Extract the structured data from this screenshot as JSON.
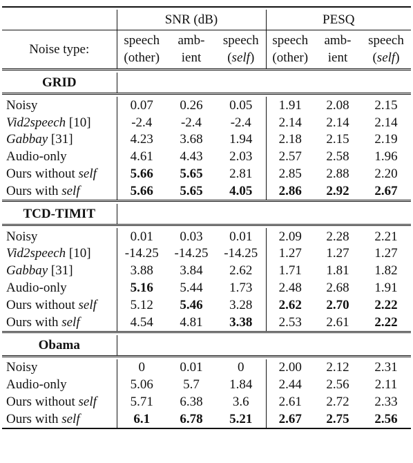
{
  "header": {
    "snr_label": "SNR (dB)",
    "pesq_label": "PESQ",
    "noise_type_label": "Noise type:",
    "columns": [
      {
        "line1": "speech",
        "line2": "(other)",
        "line2_italic_part": ""
      },
      {
        "line1": "amb-",
        "line2": "ient",
        "line2_italic_part": ""
      },
      {
        "line1": "speech",
        "line2_open": "(",
        "line2_italic_part": "self",
        "line2_close": ")"
      },
      {
        "line1": "speech",
        "line2": "(other)",
        "line2_italic_part": ""
      },
      {
        "line1": "amb-",
        "line2": "ient",
        "line2_italic_part": ""
      },
      {
        "line1": "speech",
        "line2_open": "(",
        "line2_italic_part": "self",
        "line2_close": ")"
      }
    ]
  },
  "sections": [
    {
      "name": "GRID",
      "rows": [
        {
          "method": "Noisy",
          "values": [
            "0.07",
            "0.26",
            "0.05",
            "1.91",
            "2.08",
            "2.15"
          ],
          "bold": []
        },
        {
          "method_italic": "Vid2speech",
          "method_suffix": " [10]",
          "values": [
            "-2.4",
            "-2.4",
            "-2.4",
            "2.14",
            "2.14",
            "2.14"
          ],
          "bold": []
        },
        {
          "method_italic": "Gabbay",
          "method_suffix": " [31]",
          "values": [
            "4.23",
            "3.68",
            "1.94",
            "2.18",
            "2.15",
            "2.19"
          ],
          "bold": []
        },
        {
          "method": "Audio-only",
          "values": [
            "4.61",
            "4.43",
            "2.03",
            "2.57",
            "2.58",
            "1.96"
          ],
          "bold": []
        },
        {
          "method": "Ours without ",
          "method_tail_italic": "self",
          "values": [
            "5.66",
            "5.65",
            "2.81",
            "2.85",
            "2.88",
            "2.20"
          ],
          "bold": [
            0,
            1
          ]
        },
        {
          "method": "Ours with ",
          "method_tail_italic": "self",
          "values": [
            "5.66",
            "5.65",
            "4.05",
            "2.86",
            "2.92",
            "2.67"
          ],
          "bold": [
            0,
            1,
            2,
            3,
            4,
            5
          ]
        }
      ]
    },
    {
      "name": "TCD-TIMIT",
      "rows": [
        {
          "method": "Noisy",
          "values": [
            "0.01",
            "0.03",
            "0.01",
            "2.09",
            "2.28",
            "2.21"
          ],
          "bold": []
        },
        {
          "method_italic": "Vid2speech",
          "method_suffix": " [10]",
          "values": [
            "-14.25",
            "-14.25",
            "-14.25",
            "1.27",
            "1.27",
            "1.27"
          ],
          "bold": []
        },
        {
          "method_italic": "Gabbay",
          "method_suffix": " [31]",
          "values": [
            "3.88",
            "3.84",
            "2.62",
            "1.71",
            "1.81",
            "1.82"
          ],
          "bold": []
        },
        {
          "method": "Audio-only",
          "values": [
            "5.16",
            "5.44",
            "1.73",
            "2.48",
            "2.68",
            "1.91"
          ],
          "bold": [
            0
          ]
        },
        {
          "method": "Ours without ",
          "method_tail_italic": "self",
          "values": [
            "5.12",
            "5.46",
            "3.28",
            "2.62",
            "2.70",
            "2.22"
          ],
          "bold": [
            1,
            3,
            4,
            5
          ]
        },
        {
          "method": "Ours with ",
          "method_tail_italic": "self",
          "values": [
            "4.54",
            "4.81",
            "3.38",
            "2.53",
            "2.61",
            "2.22"
          ],
          "bold": [
            2,
            5
          ]
        }
      ]
    },
    {
      "name": "Obama",
      "rows": [
        {
          "method": "Noisy",
          "values": [
            "0",
            "0.01",
            "0",
            "2.00",
            "2.12",
            "2.31"
          ],
          "bold": []
        },
        {
          "method": "Audio-only",
          "values": [
            "5.06",
            "5.7",
            "1.84",
            "2.44",
            "2.56",
            "2.11"
          ],
          "bold": []
        },
        {
          "method": "Ours without ",
          "method_tail_italic": "self",
          "values": [
            "5.71",
            "6.38",
            "3.6",
            "2.61",
            "2.72",
            "2.33"
          ],
          "bold": []
        },
        {
          "method": "Ours with ",
          "method_tail_italic": "self",
          "values": [
            "6.1",
            "6.78",
            "5.21",
            "2.67",
            "2.75",
            "2.56"
          ],
          "bold": [
            0,
            1,
            2,
            3,
            4,
            5
          ]
        }
      ]
    }
  ]
}
